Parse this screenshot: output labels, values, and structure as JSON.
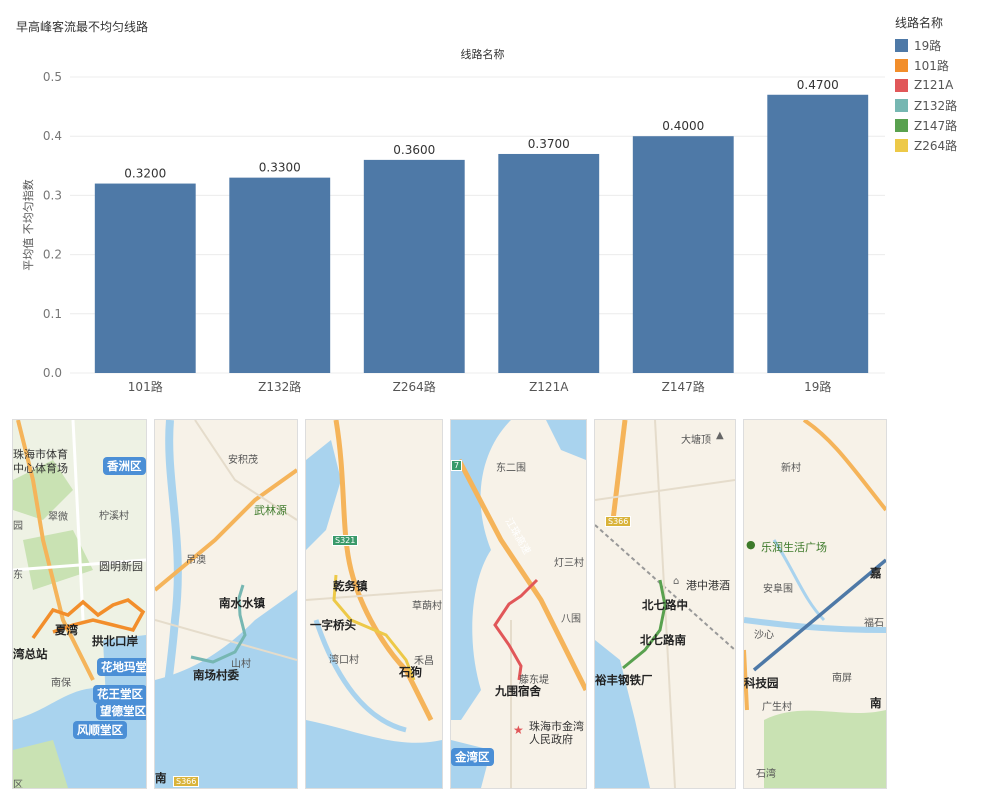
{
  "title": "早高峰客流最不均匀线路",
  "legend": {
    "title": "线路名称",
    "items": [
      {
        "label": "19路",
        "color": "#4e79a7"
      },
      {
        "label": "101路",
        "color": "#f28e2b"
      },
      {
        "label": "Z121A",
        "color": "#e15759"
      },
      {
        "label": "Z132路",
        "color": "#76b7b2"
      },
      {
        "label": "Z147路",
        "color": "#59a14f"
      },
      {
        "label": "Z264路",
        "color": "#edc948"
      }
    ]
  },
  "chart_data": {
    "type": "bar",
    "title": "线路名称",
    "xlabel": "",
    "ylabel": "平均值 不均匀指数",
    "categories": [
      "101路",
      "Z132路",
      "Z264路",
      "Z121A",
      "Z147路",
      "19路"
    ],
    "values": [
      0.32,
      0.33,
      0.36,
      0.37,
      0.4,
      0.47
    ],
    "value_labels": [
      "0.3200",
      "0.3300",
      "0.3600",
      "0.3700",
      "0.4000",
      "0.4700"
    ],
    "ylim": [
      0,
      0.5
    ],
    "yticks": [
      "0.0",
      "0.1",
      "0.2",
      "0.3",
      "0.4",
      "0.5"
    ],
    "bar_color": "#4e79a7",
    "grid": true
  },
  "maps": [
    {
      "route": "101路",
      "line_color": "#f28e2b",
      "labels": [
        "珠海市体育",
        "中心体育场",
        "翠微",
        "柠溪村",
        "圆明新园",
        "夏湾",
        "拱北口岸",
        "湾总站",
        "南保",
        "园",
        "东",
        "区"
      ],
      "chips": [
        "香洲区",
        "花地玛堂",
        "花王堂区",
        "望德堂区",
        "风顺堂区"
      ]
    },
    {
      "route": "Z132路",
      "line_color": "#76b7b2",
      "labels": [
        "安积茂",
        "武林源",
        "吊澳",
        "南水水镇",
        "南场村委",
        "山村",
        "南"
      ],
      "shields": [
        "S366"
      ]
    },
    {
      "route": "Z264路",
      "line_color": "#edc948",
      "labels": [
        "乾务镇",
        "草蓢村",
        "一字桥头",
        "湾口村",
        "禾昌",
        "石狗"
      ],
      "shields": [
        "S321"
      ]
    },
    {
      "route": "Z121A",
      "line_color": "#e15759",
      "labels": [
        "东二围",
        "灯三村",
        "八围",
        "九围宿舍",
        "藤东堤",
        "珠海市金湾",
        "人民政府",
        "江珠高速"
      ],
      "chips": [
        "金湾区"
      ],
      "shields": [
        "7"
      ]
    },
    {
      "route": "Z147路",
      "line_color": "#59a14f",
      "labels": [
        "大塘顶",
        "港中港酒",
        "北七路中",
        "北七路南",
        "裕丰钢铁厂"
      ],
      "shields": [
        "S366"
      ]
    },
    {
      "route": "19路",
      "line_color": "#4e79a7",
      "labels": [
        "新村",
        "乐润生活广场",
        "安阜围",
        "嘉",
        "沙心",
        "福石",
        "科技园",
        "南屏",
        "广生村",
        "南",
        "石湾"
      ]
    }
  ]
}
